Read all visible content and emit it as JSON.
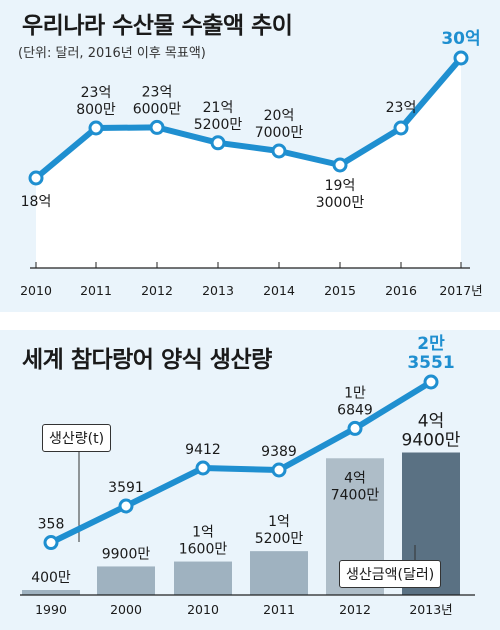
{
  "chart_data": [
    {
      "type": "line",
      "title": "우리나라 수산물 수출액 추이",
      "subtitle": "(단위: 달러, 2016년 이후 목표액)",
      "categories": [
        "2010",
        "2011",
        "2012",
        "2013",
        "2014",
        "2015",
        "2016",
        "2017년"
      ],
      "values": [
        1800000000,
        2300000800,
        2306000000,
        2152000000,
        2070000000,
        1930000000,
        2300000000,
        3000000000
      ],
      "point_labels": [
        [
          "18억"
        ],
        [
          "23억",
          "800만"
        ],
        [
          "23억",
          "6000만"
        ],
        [
          "21억",
          "5200만"
        ],
        [
          "20억",
          "7000만"
        ],
        [
          "19억",
          "3000만"
        ],
        [
          "23억"
        ],
        [
          "30억"
        ]
      ],
      "ylim": [
        1000000000,
        3100000000
      ],
      "colors": {
        "line": "#1f8fd0",
        "area": "#ffffff",
        "highlight": "#1f8fd0"
      }
    },
    {
      "type": "bar",
      "title": "세계 참다랑어 양식 생산량",
      "categories": [
        "1990",
        "2000",
        "2010",
        "2011",
        "2012",
        "2013년"
      ],
      "series": [
        {
          "name": "생산량(t)",
          "type": "line",
          "values": [
            358,
            3591,
            9412,
            9389,
            16849,
            23551
          ],
          "labels": [
            [
              "358"
            ],
            [
              "3591"
            ],
            [
              "9412"
            ],
            [
              "9389"
            ],
            [
              "1만",
              "6849"
            ],
            [
              "2만",
              "3551"
            ]
          ]
        },
        {
          "name": "생산금액(달러)",
          "type": "bar",
          "values": [
            4000000,
            99000000,
            116000000,
            152000000,
            474000000,
            494000000
          ],
          "labels": [
            [
              "400만"
            ],
            [
              "9900만"
            ],
            [
              "1억",
              "1600만"
            ],
            [
              "1억",
              "5200만"
            ],
            [
              "4억",
              "7400만"
            ],
            [
              "4억",
              "9400만"
            ]
          ]
        }
      ],
      "colors": {
        "line": "#1f8fd0",
        "bar": "#9fb2c0",
        "bar_2012": "#aebdc8",
        "bar_2013": "#5a7183",
        "highlight": "#1f8fd0"
      }
    }
  ],
  "legend": {
    "production": "생산량(t)",
    "value": "생산금액(달러)"
  }
}
